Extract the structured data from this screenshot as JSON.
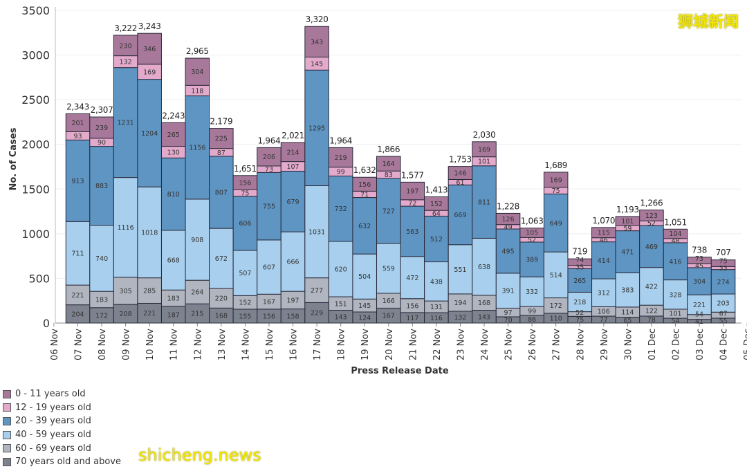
{
  "chart_data": {
    "type": "bar",
    "stacked": true,
    "xlabel": "Press Release Date",
    "ylabel": "No. of Cases",
    "ylim": [
      0,
      3500
    ],
    "yticks": [
      0,
      500,
      1000,
      1500,
      2000,
      2500,
      3000,
      3500
    ],
    "x_tick_labels": [
      "06 Nov",
      "07 Nov",
      "08 Nov",
      "09 Nov",
      "10 Nov",
      "11 Nov",
      "12 Nov",
      "13 Nov",
      "14 Nov",
      "15 Nov",
      "16 Nov",
      "17 Nov",
      "18 Nov",
      "19 Nov",
      "20 Nov",
      "21 Nov",
      "22 Nov",
      "23 Nov",
      "24 Nov",
      "25 Nov",
      "26 Nov",
      "27 Nov",
      "28 Nov",
      "29 Nov",
      "30 Nov",
      "01 Dec",
      "02 Dec",
      "03 Dec",
      "04 Dec",
      "05 Dec"
    ],
    "categories": [
      "07 Nov",
      "08 Nov",
      "09 Nov",
      "10 Nov",
      "11 Nov",
      "12 Nov",
      "13 Nov",
      "14 Nov",
      "15 Nov",
      "16 Nov",
      "17 Nov",
      "18 Nov",
      "19 Nov",
      "20 Nov",
      "21 Nov",
      "22 Nov",
      "23 Nov",
      "24 Nov",
      "25 Nov",
      "26 Nov",
      "27 Nov",
      "28 Nov",
      "29 Nov",
      "30 Nov",
      "01 Dec",
      "02 Dec",
      "03 Dec",
      "04 Dec"
    ],
    "totals": [
      "2,343",
      "2,307",
      "3,222",
      "3,243",
      "2,243",
      "2,965",
      "2,179",
      "1,651",
      "1,964",
      "2,021",
      "3,320",
      "1,964",
      "1,632",
      "1,866",
      "1,577",
      "1,413",
      "1,753",
      "2,030",
      "1,228",
      "1,063",
      "1,689",
      "719",
      "1,070",
      "1,193",
      "1,266",
      "1,051",
      "738",
      "707"
    ],
    "series": [
      {
        "name": "70 years old and above",
        "color": "#7d828f",
        "values": [
          204,
          172,
          208,
          221,
          187,
          215,
          168,
          155,
          156,
          158,
          229,
          143,
          124,
          167,
          117,
          116,
          132,
          143,
          70,
          86,
          110,
          75,
          77,
          65,
          78,
          54,
          41,
          55
        ]
      },
      {
        "name": "60 - 69 years old",
        "color": "#b1b5c0",
        "values": [
          221,
          183,
          305,
          285,
          183,
          264,
          220,
          152,
          167,
          197,
          277,
          151,
          145,
          166,
          156,
          131,
          194,
          168,
          97,
          99,
          172,
          52,
          106,
          114,
          122,
          101,
          54,
          67
        ]
      },
      {
        "name": "40 - 59 years old",
        "color": "#a8d0ee",
        "values": [
          711,
          740,
          1116,
          1018,
          668,
          908,
          672,
          507,
          607,
          666,
          1031,
          620,
          504,
          559,
          472,
          438,
          551,
          638,
          391,
          332,
          514,
          218,
          312,
          383,
          422,
          328,
          221,
          203
        ]
      },
      {
        "name": "20 - 39 years old",
        "color": "#5f95c3",
        "values": [
          913,
          883,
          1231,
          1204,
          810,
          1156,
          807,
          606,
          755,
          679,
          1295,
          732,
          632,
          727,
          563,
          512,
          669,
          811,
          495,
          389,
          649,
          265,
          414,
          471,
          469,
          416,
          304,
          274
        ]
      },
      {
        "name": "12 - 19 years old",
        "color": "#e3aacb",
        "values": [
          93,
          90,
          132,
          169,
          130,
          118,
          87,
          75,
          73,
          107,
          145,
          99,
          71,
          83,
          72,
          64,
          61,
          101,
          49,
          52,
          75,
          35,
          46,
          59,
          52,
          48,
          45,
          33
        ]
      },
      {
        "name": "0 - 11 years old",
        "color": "#a8789a",
        "values": [
          201,
          239,
          230,
          346,
          265,
          304,
          225,
          156,
          206,
          214,
          343,
          219,
          156,
          164,
          197,
          152,
          146,
          169,
          126,
          105,
          169,
          74,
          115,
          101,
          123,
          104,
          73,
          75
        ]
      }
    ],
    "legend": [
      "0 - 11 years old",
      "12 - 19 years old",
      "20 - 39 years old",
      "40 - 59 years old",
      "60 - 69 years old",
      "70 years old and above"
    ],
    "legend_position": "bottom-left",
    "grid": true
  },
  "watermarks": {
    "top_right": "狮城新闻",
    "bottom_left": "shicheng.news"
  }
}
